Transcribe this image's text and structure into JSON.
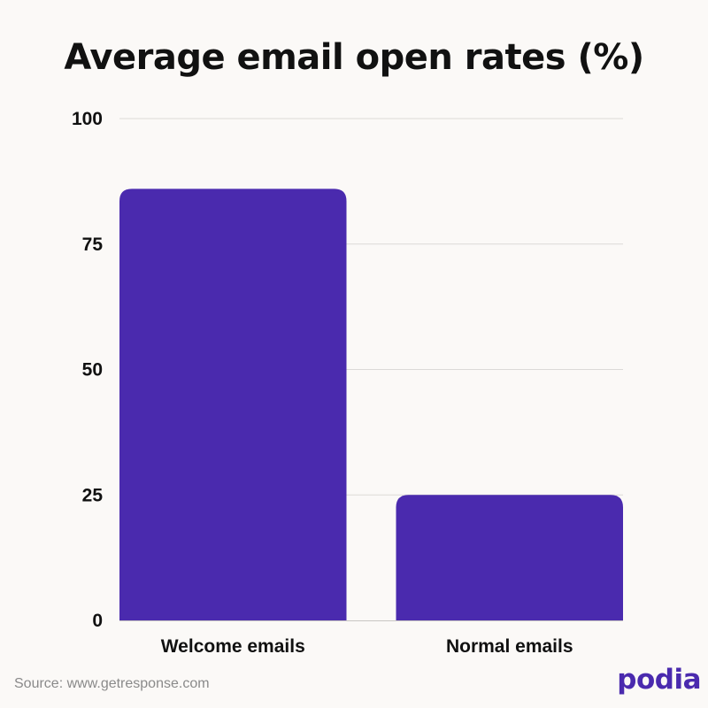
{
  "chart_data": {
    "type": "bar",
    "title": "Average email open rates (%)",
    "categories": [
      "Welcome emails",
      "Normal emails"
    ],
    "values": [
      86,
      25
    ],
    "ylim": [
      0,
      100
    ],
    "yticks": [
      0,
      25,
      50,
      75,
      100
    ],
    "grid": true,
    "bar_color": "#4a2aae"
  },
  "footer": {
    "source": "Source: www.getresponse.com",
    "brand": "podia",
    "brand_color": "#4a2aae"
  }
}
